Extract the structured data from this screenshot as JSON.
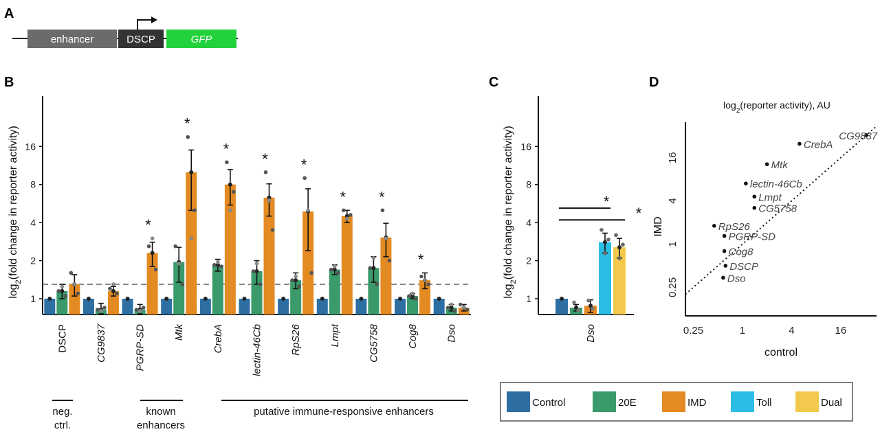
{
  "panels": {
    "a": "A",
    "b": "B",
    "c": "C",
    "d": "D"
  },
  "construct": {
    "enhancer": "enhancer",
    "promoter": "DSCP",
    "reporter": "GFP"
  },
  "colors": {
    "Control": "#2e6fa3",
    "20E": "#3a9a6a",
    "IMD": "#e38a22",
    "Toll": "#2bbde6",
    "Dual": "#f2c94c"
  },
  "legend": [
    "Control",
    "20E",
    "IMD",
    "Toll",
    "Dual"
  ],
  "groups": [
    {
      "label_lines": [
        "neg.",
        "ctrl."
      ]
    },
    {
      "label_lines": [
        "known",
        "enhancers"
      ]
    },
    {
      "label_lines": [
        "putative immune-responsive enhancers"
      ]
    }
  ],
  "chart_data": [
    {
      "panel": "B",
      "type": "bar",
      "ylabel": "log2(fold change in reporter activity)",
      "yscale": "log2",
      "yticks": [
        1,
        2,
        4,
        8,
        16
      ],
      "ytick_labels": [
        "1",
        "2",
        "4",
        "8",
        "16"
      ],
      "ylim": [
        0.75,
        40
      ],
      "reference_line": 1.3,
      "categories": [
        "DSCP",
        "CG9837",
        "PGRP-SD",
        "Mtk",
        "CrebA",
        "lectin-46Cb",
        "RpS26",
        "Lmpt",
        "CG5758",
        "Cog8",
        "Dso"
      ],
      "italic": [
        false,
        true,
        true,
        true,
        true,
        true,
        true,
        true,
        true,
        true,
        true
      ],
      "series": [
        {
          "name": "Control",
          "values": [
            1,
            1,
            1,
            1,
            1,
            1,
            1,
            1,
            1,
            1,
            1
          ],
          "err": [
            0,
            0,
            0,
            0,
            0,
            0,
            0,
            0,
            0,
            0,
            0
          ]
        },
        {
          "name": "20E",
          "values": [
            1.15,
            0.82,
            0.82,
            1.95,
            1.85,
            1.65,
            1.4,
            1.7,
            1.75,
            1.05,
            0.85
          ],
          "err": [
            0.15,
            0.1,
            0.08,
            0.6,
            0.2,
            0.35,
            0.2,
            0.15,
            0.4,
            0.05,
            0.05
          ]
        },
        {
          "name": "IMD",
          "values": [
            1.3,
            1.15,
            2.3,
            10,
            8,
            6.3,
            4.9,
            4.5,
            3.05,
            1.4,
            0.85
          ],
          "err": [
            0.25,
            0.1,
            0.5,
            5,
            2.5,
            1.8,
            2.5,
            0.5,
            0.9,
            0.2,
            0.05
          ]
        }
      ],
      "points": {
        "20E": [
          [
            1.15,
            1.25,
            1.05
          ],
          [
            0.82,
            0.8,
            0.85
          ],
          [
            0.82,
            0.8,
            0.85
          ],
          [
            2.6,
            1.9,
            1.3
          ],
          [
            1.85,
            1.95,
            1.8
          ],
          [
            1.65,
            1.9,
            1.3
          ],
          [
            1.4,
            1.5,
            1.25
          ],
          [
            1.7,
            1.8,
            1.6
          ],
          [
            1.75,
            2.1,
            1.3
          ],
          [
            1.05,
            1.1,
            1.0
          ],
          [
            0.85,
            0.9,
            0.8
          ]
        ],
        "IMD": [
          [
            1.6,
            1.3,
            1.1
          ],
          [
            1.2,
            1.3,
            1.1
          ],
          [
            2.6,
            3.0,
            1.7
          ],
          [
            19,
            3.0,
            5.0
          ],
          [
            12,
            5.0,
            7.0
          ],
          [
            10,
            6.0,
            3.5
          ],
          [
            9,
            5.0,
            1.6
          ],
          [
            5.0,
            4.3,
            4.6
          ],
          [
            5.0,
            3.0,
            2.0
          ],
          [
            1.5,
            1.4,
            1.3
          ],
          [
            0.9,
            0.85,
            0.82
          ]
        ]
      },
      "significant": [
        false,
        false,
        true,
        true,
        true,
        true,
        true,
        true,
        true,
        true,
        false
      ],
      "star": "*"
    },
    {
      "panel": "C",
      "type": "bar",
      "ylabel": "log2(fold change in reporter activity)",
      "yscale": "log2",
      "yticks": [
        1,
        2,
        4,
        8,
        16
      ],
      "ytick_labels": [
        "1",
        "2",
        "4",
        "8",
        "16"
      ],
      "ylim": [
        0.75,
        40
      ],
      "categories": [
        "Dso"
      ],
      "series": [
        {
          "name": "Control",
          "values": [
            1
          ],
          "err": [
            0
          ]
        },
        {
          "name": "20E",
          "values": [
            0.85
          ],
          "err": [
            0.05
          ]
        },
        {
          "name": "IMD",
          "values": [
            0.88
          ],
          "err": [
            0.1
          ]
        },
        {
          "name": "Toll",
          "values": [
            2.8
          ],
          "err": [
            0.5
          ]
        },
        {
          "name": "Dual",
          "values": [
            2.55
          ],
          "err": [
            0.45
          ]
        }
      ],
      "significance_bars": [
        {
          "from": "Control",
          "to": "Toll",
          "y": 5.2
        },
        {
          "from": "Control",
          "to": "Dual",
          "y": 4.2
        }
      ],
      "star": "*"
    },
    {
      "panel": "D",
      "type": "scatter",
      "title": "log2(reporter activity), AU",
      "xlabel": "control",
      "ylabel": "IMD",
      "xscale": "log2",
      "yscale": "log2",
      "xticks": [
        0.25,
        1,
        4,
        16
      ],
      "xtick_labels": [
        "0.25",
        "1",
        "4",
        "16"
      ],
      "yticks": [
        0.25,
        1,
        4,
        16
      ],
      "ytick_labels": [
        "0.25",
        "1",
        "4",
        "16"
      ],
      "xlim": [
        0.2,
        44
      ],
      "ylim": [
        0.1,
        50
      ],
      "diagonal": true,
      "points": [
        {
          "label": "CG9837",
          "x": 33,
          "y": 33
        },
        {
          "label": "CrebA",
          "x": 5,
          "y": 25
        },
        {
          "label": "Mtk",
          "x": 2,
          "y": 13
        },
        {
          "label": "lectin-46Cb",
          "x": 1.1,
          "y": 7
        },
        {
          "label": "Lmpt",
          "x": 1.4,
          "y": 4.6
        },
        {
          "label": "CG5758",
          "x": 1.4,
          "y": 3.2
        },
        {
          "label": "RpS26",
          "x": 0.45,
          "y": 1.8
        },
        {
          "label": "PGRP-SD",
          "x": 0.6,
          "y": 1.3
        },
        {
          "label": "Cog8",
          "x": 0.6,
          "y": 0.8
        },
        {
          "label": "DSCP",
          "x": 0.62,
          "y": 0.5
        },
        {
          "label": "Dso",
          "x": 0.58,
          "y": 0.34
        }
      ]
    }
  ]
}
